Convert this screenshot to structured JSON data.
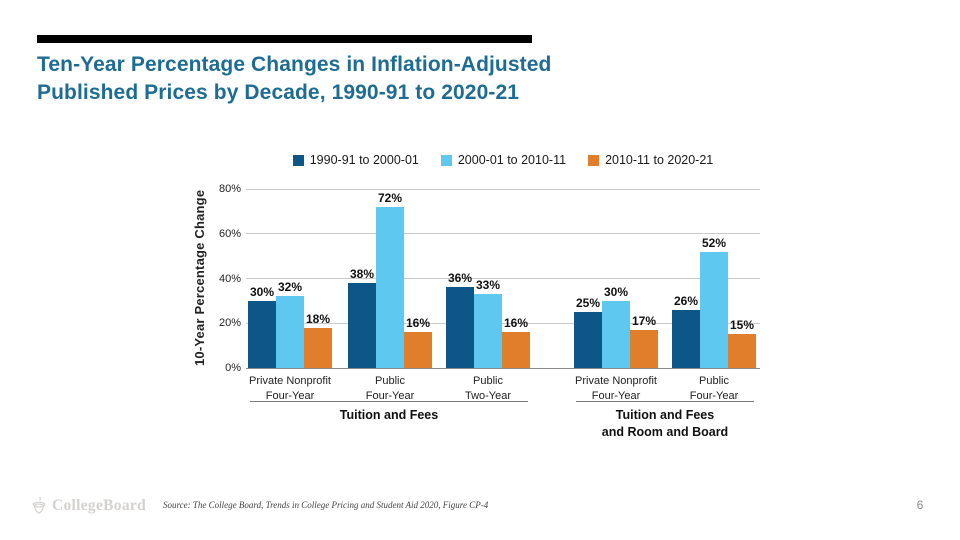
{
  "slide": {
    "title_line1": "Ten-Year Percentage Changes in Inflation-Adjusted",
    "title_line2": "Published Prices by Decade, 1990-91 to 2020-21",
    "source": "Source: The College Board, Trends in College Pricing and Student Aid 2020, Figure CP-4",
    "logo_text": "CollegeBoard",
    "page_number": "6"
  },
  "colors": {
    "title_text": "#1e6c93",
    "accent_bar": "#000000",
    "series1": "#0d5688",
    "series2": "#5ec8f0",
    "series3": "#e07e2c",
    "gridline": "#cbcbcb",
    "baseline": "#8a8a8a"
  },
  "chart_data": {
    "type": "bar",
    "title": "",
    "xlabel": "",
    "ylabel": "10-Year Percentage Change",
    "ylim": [
      0,
      80
    ],
    "yticks": [
      "0%",
      "20%",
      "40%",
      "60%",
      "80%"
    ],
    "grid": true,
    "legend_position": "top",
    "value_label_format": "{v}%",
    "categories": [
      [
        "Private Nonprofit",
        "Four-Year"
      ],
      [
        "Public",
        "Four-Year"
      ],
      [
        "Public",
        "Two-Year"
      ],
      [
        "Private Nonprofit",
        "Four-Year"
      ],
      [
        "Public",
        "Four-Year"
      ]
    ],
    "sections": [
      {
        "label_lines": [
          "Tuition and Fees"
        ],
        "group_indices": [
          0,
          1,
          2
        ]
      },
      {
        "label_lines": [
          "Tuition and Fees",
          "and Room and Board"
        ],
        "group_indices": [
          3,
          4
        ]
      }
    ],
    "series": [
      {
        "name": "1990-91 to 2000-01",
        "color": "#0d5688",
        "values": [
          30,
          38,
          36,
          25,
          26
        ]
      },
      {
        "name": "2000-01 to 2010-11",
        "color": "#5ec8f0",
        "values": [
          32,
          72,
          33,
          30,
          52
        ]
      },
      {
        "name": "2010-11 to 2020-21",
        "color": "#e07e2c",
        "values": [
          18,
          16,
          16,
          17,
          15
        ]
      }
    ]
  }
}
